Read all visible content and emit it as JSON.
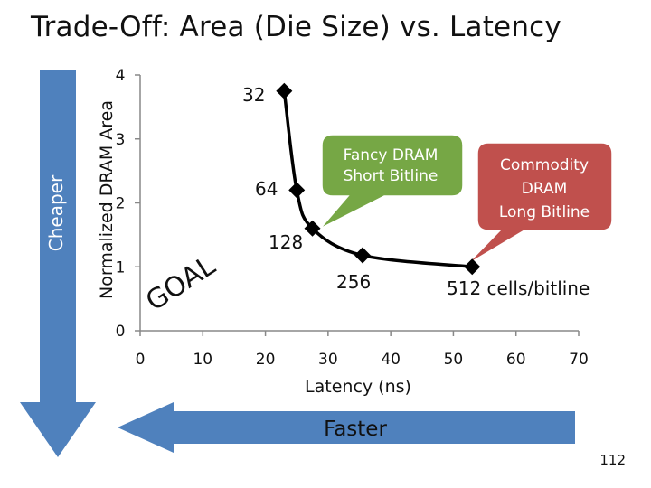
{
  "title": "Trade-Off: Area (Die Size) vs. Latency",
  "slide_number": "112",
  "arrows": {
    "vertical_label": "Cheaper",
    "horizontal_label": "Faster"
  },
  "goal_label": "GOAL",
  "callouts": [
    {
      "lines": [
        "Fancy DRAM",
        "Short Bitline"
      ],
      "color": "#76a745"
    },
    {
      "lines": [
        "Commodity",
        "DRAM",
        "Long Bitline"
      ],
      "color": "#c0504d"
    }
  ],
  "colors": {
    "arrow_fill": "#4f81bd",
    "axis": "#888888",
    "line": "#000000"
  },
  "chart_data": {
    "type": "line",
    "title": "",
    "xlabel": "Latency (ns)",
    "ylabel": "Normalized DRAM Area",
    "xlim": [
      0,
      70
    ],
    "ylim": [
      0,
      4
    ],
    "xticks": [
      "0",
      "10",
      "20",
      "30",
      "40",
      "50",
      "60",
      "70"
    ],
    "yticks": [
      "0",
      "1",
      "2",
      "3",
      "4"
    ],
    "points": [
      {
        "label": "32",
        "x": 23,
        "y": 3.75
      },
      {
        "label": "64",
        "x": 25,
        "y": 2.2
      },
      {
        "label": "128",
        "x": 27.5,
        "y": 1.6
      },
      {
        "label": "256",
        "x": 35.5,
        "y": 1.18
      },
      {
        "label": "512 cells/bitline",
        "x": 53,
        "y": 1.0
      }
    ]
  }
}
